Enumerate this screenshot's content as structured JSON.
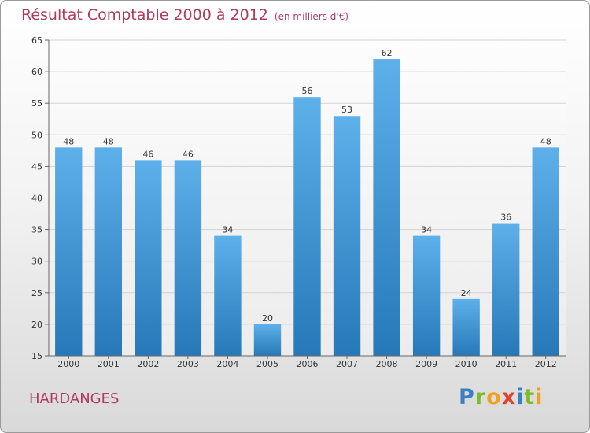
{
  "chart_data": {
    "type": "bar",
    "title": "Résultat Comptable 2000 à 2012",
    "subtitle": "(en milliers d'€)",
    "categories": [
      "2000",
      "2001",
      "2002",
      "2003",
      "2004",
      "2005",
      "2006",
      "2007",
      "2008",
      "2009",
      "2010",
      "2011",
      "2012"
    ],
    "values": [
      48,
      48,
      46,
      46,
      34,
      20,
      56,
      53,
      62,
      34,
      24,
      36,
      48
    ],
    "ylim": [
      15,
      65
    ],
    "yticks": [
      15,
      20,
      25,
      30,
      35,
      40,
      45,
      50,
      55,
      60,
      65
    ],
    "grid": true,
    "xlabel": "",
    "ylabel": ""
  },
  "footer": {
    "commune": "HARDANGES",
    "logo_letters": [
      {
        "ch": "P",
        "color": "#3a7fc4"
      },
      {
        "ch": "r",
        "color": "#7dbb2c"
      },
      {
        "ch": "o",
        "color": "#f0a11d"
      },
      {
        "ch": "x",
        "color": "#e0432c"
      },
      {
        "ch": "i",
        "color": "#3a7fc4"
      },
      {
        "ch": "t",
        "color": "#7dbb2c"
      },
      {
        "ch": "i",
        "color": "#f0a11d"
      }
    ]
  },
  "colors": {
    "title": "#b03a5e",
    "bar_light": "#5db0ea",
    "bar_dark": "#2778b8",
    "grid": "#d2d2d2",
    "axis": "#666666"
  }
}
